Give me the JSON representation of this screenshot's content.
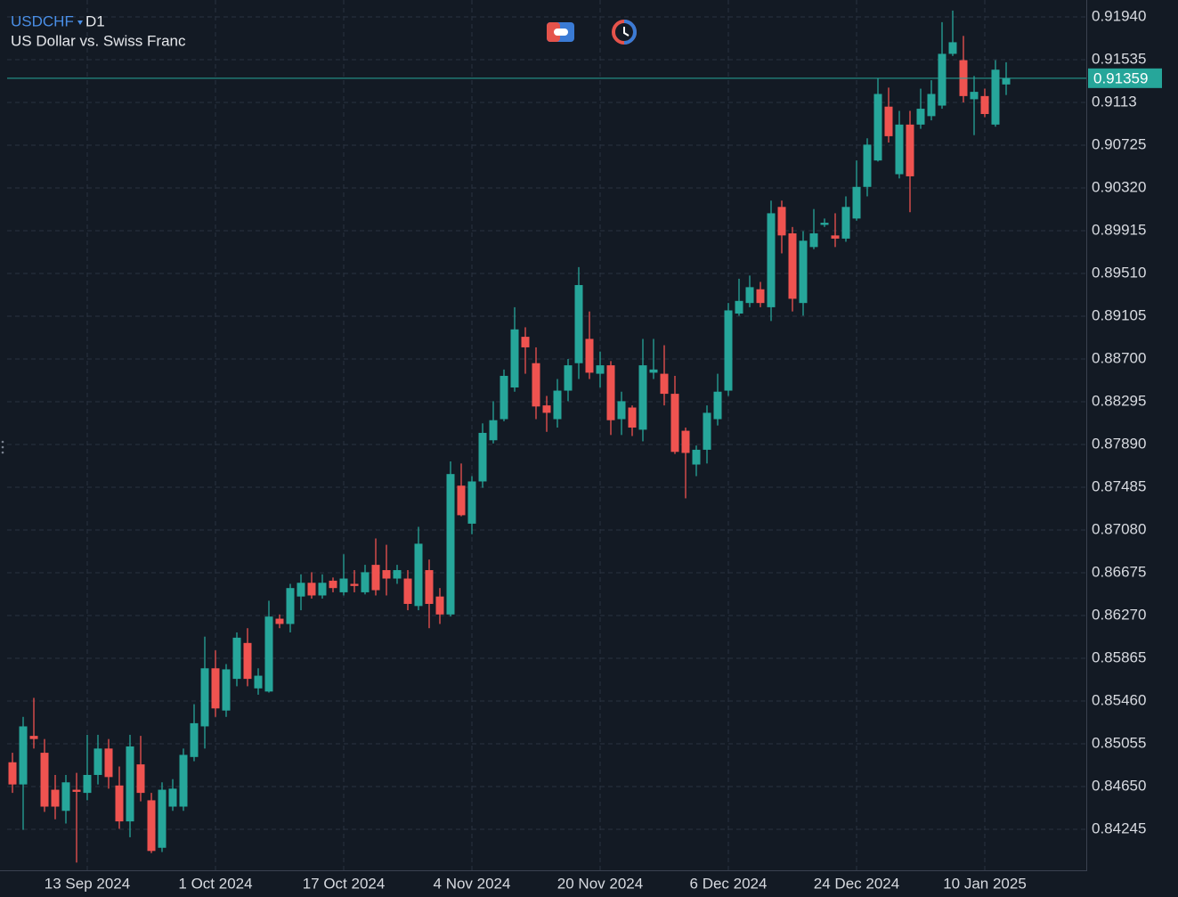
{
  "chart_data": {
    "type": "candlestick",
    "title": "USDCHF",
    "timeframe": "D1",
    "subtitle": "US Dollar vs. Swiss Franc",
    "categories": [
      null,
      null,
      null,
      null,
      null,
      null,
      null,
      "13 Sep 2024",
      null,
      null,
      null,
      null,
      null,
      null,
      null,
      null,
      null,
      null,
      null,
      "1 Oct 2024",
      null,
      null,
      null,
      null,
      null,
      null,
      null,
      null,
      null,
      null,
      null,
      "17 Oct 2024",
      null,
      null,
      null,
      null,
      null,
      null,
      null,
      null,
      null,
      null,
      null,
      "4 Nov 2024",
      null,
      null,
      null,
      null,
      null,
      null,
      null,
      null,
      null,
      null,
      null,
      "20 Nov 2024",
      null,
      null,
      null,
      null,
      null,
      null,
      null,
      null,
      null,
      null,
      null,
      "6 Dec 2024",
      null,
      null,
      null,
      null,
      null,
      null,
      null,
      null,
      null,
      null,
      null,
      "24 Dec 2024",
      null,
      null,
      null,
      null,
      null,
      null,
      null,
      null,
      null,
      null,
      null,
      "10 Jan 2025",
      null,
      null
    ],
    "open": [
      0.8488,
      0.8467,
      0.8513,
      0.8497,
      0.8462,
      0.8442,
      0.8462,
      0.8459,
      0.8476,
      0.8501,
      0.8466,
      0.8432,
      0.8486,
      0.8452,
      0.8407,
      0.8446,
      0.8446,
      0.8493,
      0.8522,
      0.8577,
      0.8537,
      0.8567,
      0.8601,
      0.8558,
      0.8555,
      0.8624,
      0.8619,
      0.8645,
      0.8658,
      0.8646,
      0.866,
      0.8649,
      0.8657,
      0.8649,
      0.8675,
      0.867,
      0.8662,
      0.8662,
      0.8636,
      0.867,
      0.8645,
      0.8628,
      0.875,
      0.8714,
      0.8754,
      0.8793,
      0.8813,
      0.8843,
      0.8891,
      0.8866,
      0.8826,
      0.8813,
      0.884,
      0.8866,
      0.8889,
      0.8856,
      0.8864,
      0.8813,
      0.8824,
      0.8803,
      0.8857,
      0.8856,
      0.8837,
      0.8802,
      0.877,
      0.8784,
      0.8813,
      0.884,
      0.8913,
      0.8923,
      0.8936,
      0.8919,
      0.9014,
      0.8989,
      0.8923,
      0.8976,
      0.8997,
      0.8987,
      0.8984,
      0.9003,
      0.9033,
      0.9058,
      0.9109,
      0.9045,
      0.9092,
      0.9092,
      0.91,
      0.911,
      0.9159,
      0.9153,
      0.9116,
      0.9119,
      0.9092,
      0.913
    ],
    "high": [
      0.8497,
      0.8531,
      0.8549,
      0.851,
      0.8476,
      0.8476,
      0.8478,
      0.8514,
      0.8514,
      0.851,
      0.8484,
      0.8514,
      0.8513,
      0.8459,
      0.8469,
      0.8472,
      0.8501,
      0.8543,
      0.8607,
      0.8594,
      0.8581,
      0.8611,
      0.8615,
      0.8577,
      0.8641,
      0.8628,
      0.8657,
      0.8666,
      0.8668,
      0.8666,
      0.8663,
      0.8685,
      0.867,
      0.8675,
      0.87,
      0.8694,
      0.8675,
      0.867,
      0.8711,
      0.868,
      0.8653,
      0.8773,
      0.8771,
      0.8759,
      0.8809,
      0.883,
      0.886,
      0.8919,
      0.89,
      0.8881,
      0.8835,
      0.8851,
      0.887,
      0.8957,
      0.8915,
      0.8877,
      0.8868,
      0.8839,
      0.8826,
      0.8889,
      0.8889,
      0.8883,
      0.8854,
      0.8805,
      0.8788,
      0.8826,
      0.8856,
      0.8923,
      0.8946,
      0.8949,
      0.8943,
      0.902,
      0.902,
      0.8995,
      0.8991,
      0.9012,
      0.9003,
      0.9008,
      0.9024,
      0.9058,
      0.9079,
      0.9136,
      0.9127,
      0.9105,
      0.9105,
      0.9126,
      0.9134,
      0.9189,
      0.92,
      0.9176,
      0.9138,
      0.9126,
      0.9153,
      0.9151
    ],
    "low": [
      0.8459,
      0.8424,
      0.8501,
      0.8441,
      0.8434,
      0.843,
      0.8393,
      0.8452,
      0.8467,
      0.8463,
      0.8425,
      0.8417,
      0.8451,
      0.8402,
      0.8403,
      0.8442,
      0.8442,
      0.8489,
      0.8501,
      0.8531,
      0.8531,
      0.856,
      0.856,
      0.8552,
      0.8554,
      0.8615,
      0.8611,
      0.8632,
      0.8643,
      0.8643,
      0.8649,
      0.8646,
      0.8649,
      0.8647,
      0.8646,
      0.8646,
      0.8657,
      0.8632,
      0.8632,
      0.8615,
      0.8619,
      0.8626,
      0.8721,
      0.8704,
      0.8748,
      0.879,
      0.8811,
      0.8839,
      0.8856,
      0.8813,
      0.8801,
      0.8805,
      0.883,
      0.8851,
      0.8851,
      0.8843,
      0.8798,
      0.8798,
      0.8797,
      0.8792,
      0.8851,
      0.8826,
      0.878,
      0.8738,
      0.8759,
      0.8771,
      0.8807,
      0.8835,
      0.8911,
      0.8919,
      0.8919,
      0.8906,
      0.897,
      0.8915,
      0.8911,
      0.8974,
      0.8995,
      0.8976,
      0.8981,
      0.9001,
      0.9024,
      0.9057,
      0.9075,
      0.9041,
      0.9009,
      0.9088,
      0.9096,
      0.9107,
      0.9157,
      0.9113,
      0.9082,
      0.9099,
      0.909,
      0.912
    ],
    "close": [
      0.8467,
      0.8522,
      0.851,
      0.8446,
      0.8446,
      0.8469,
      0.846,
      0.8476,
      0.8501,
      0.8474,
      0.8432,
      0.8503,
      0.8459,
      0.8404,
      0.8462,
      0.8463,
      0.8495,
      0.8525,
      0.8577,
      0.8539,
      0.8576,
      0.8606,
      0.8567,
      0.857,
      0.8626,
      0.8619,
      0.8653,
      0.8658,
      0.8646,
      0.8658,
      0.8653,
      0.8662,
      0.8655,
      0.8668,
      0.8651,
      0.8662,
      0.867,
      0.8638,
      0.8695,
      0.8638,
      0.8628,
      0.8761,
      0.8722,
      0.8754,
      0.88,
      0.8812,
      0.8854,
      0.8898,
      0.8881,
      0.8825,
      0.8819,
      0.884,
      0.8864,
      0.894,
      0.8857,
      0.8864,
      0.8812,
      0.883,
      0.8805,
      0.8864,
      0.886,
      0.8837,
      0.8782,
      0.8781,
      0.8784,
      0.8819,
      0.8839,
      0.8916,
      0.8925,
      0.8938,
      0.8923,
      0.9008,
      0.8987,
      0.8927,
      0.8982,
      0.8989,
      0.8999,
      0.8984,
      0.9014,
      0.9033,
      0.9073,
      0.9121,
      0.9081,
      0.9092,
      0.9043,
      0.9107,
      0.9121,
      0.9159,
      0.917,
      0.9119,
      0.9123,
      0.9102,
      0.9144,
      0.91359
    ],
    "up_color": "#26a69a",
    "down_color": "#ef5350",
    "current_price": 0.91359,
    "current_price_color": "#26a69a",
    "ylim": [
      0.83857,
      0.921
    ],
    "yticks": [
      {
        "value": 0.9194,
        "label": "0.91940"
      },
      0.91535,
      0.9113,
      0.90725,
      {
        "value": 0.9032,
        "label": "0.90320"
      },
      0.89915,
      {
        "value": 0.8951,
        "label": "0.89510"
      },
      0.89105,
      {
        "value": 0.887,
        "label": "0.88700"
      },
      0.88295,
      {
        "value": 0.8789,
        "label": "0.87890"
      },
      0.87485,
      {
        "value": 0.8708,
        "label": "0.87080"
      },
      0.86675,
      {
        "value": 0.8627,
        "label": "0.86270"
      },
      0.85865,
      {
        "value": 0.8546,
        "label": "0.85460"
      },
      0.85055,
      {
        "value": 0.8465,
        "label": "0.84650"
      },
      0.84245
    ],
    "grid": true
  }
}
